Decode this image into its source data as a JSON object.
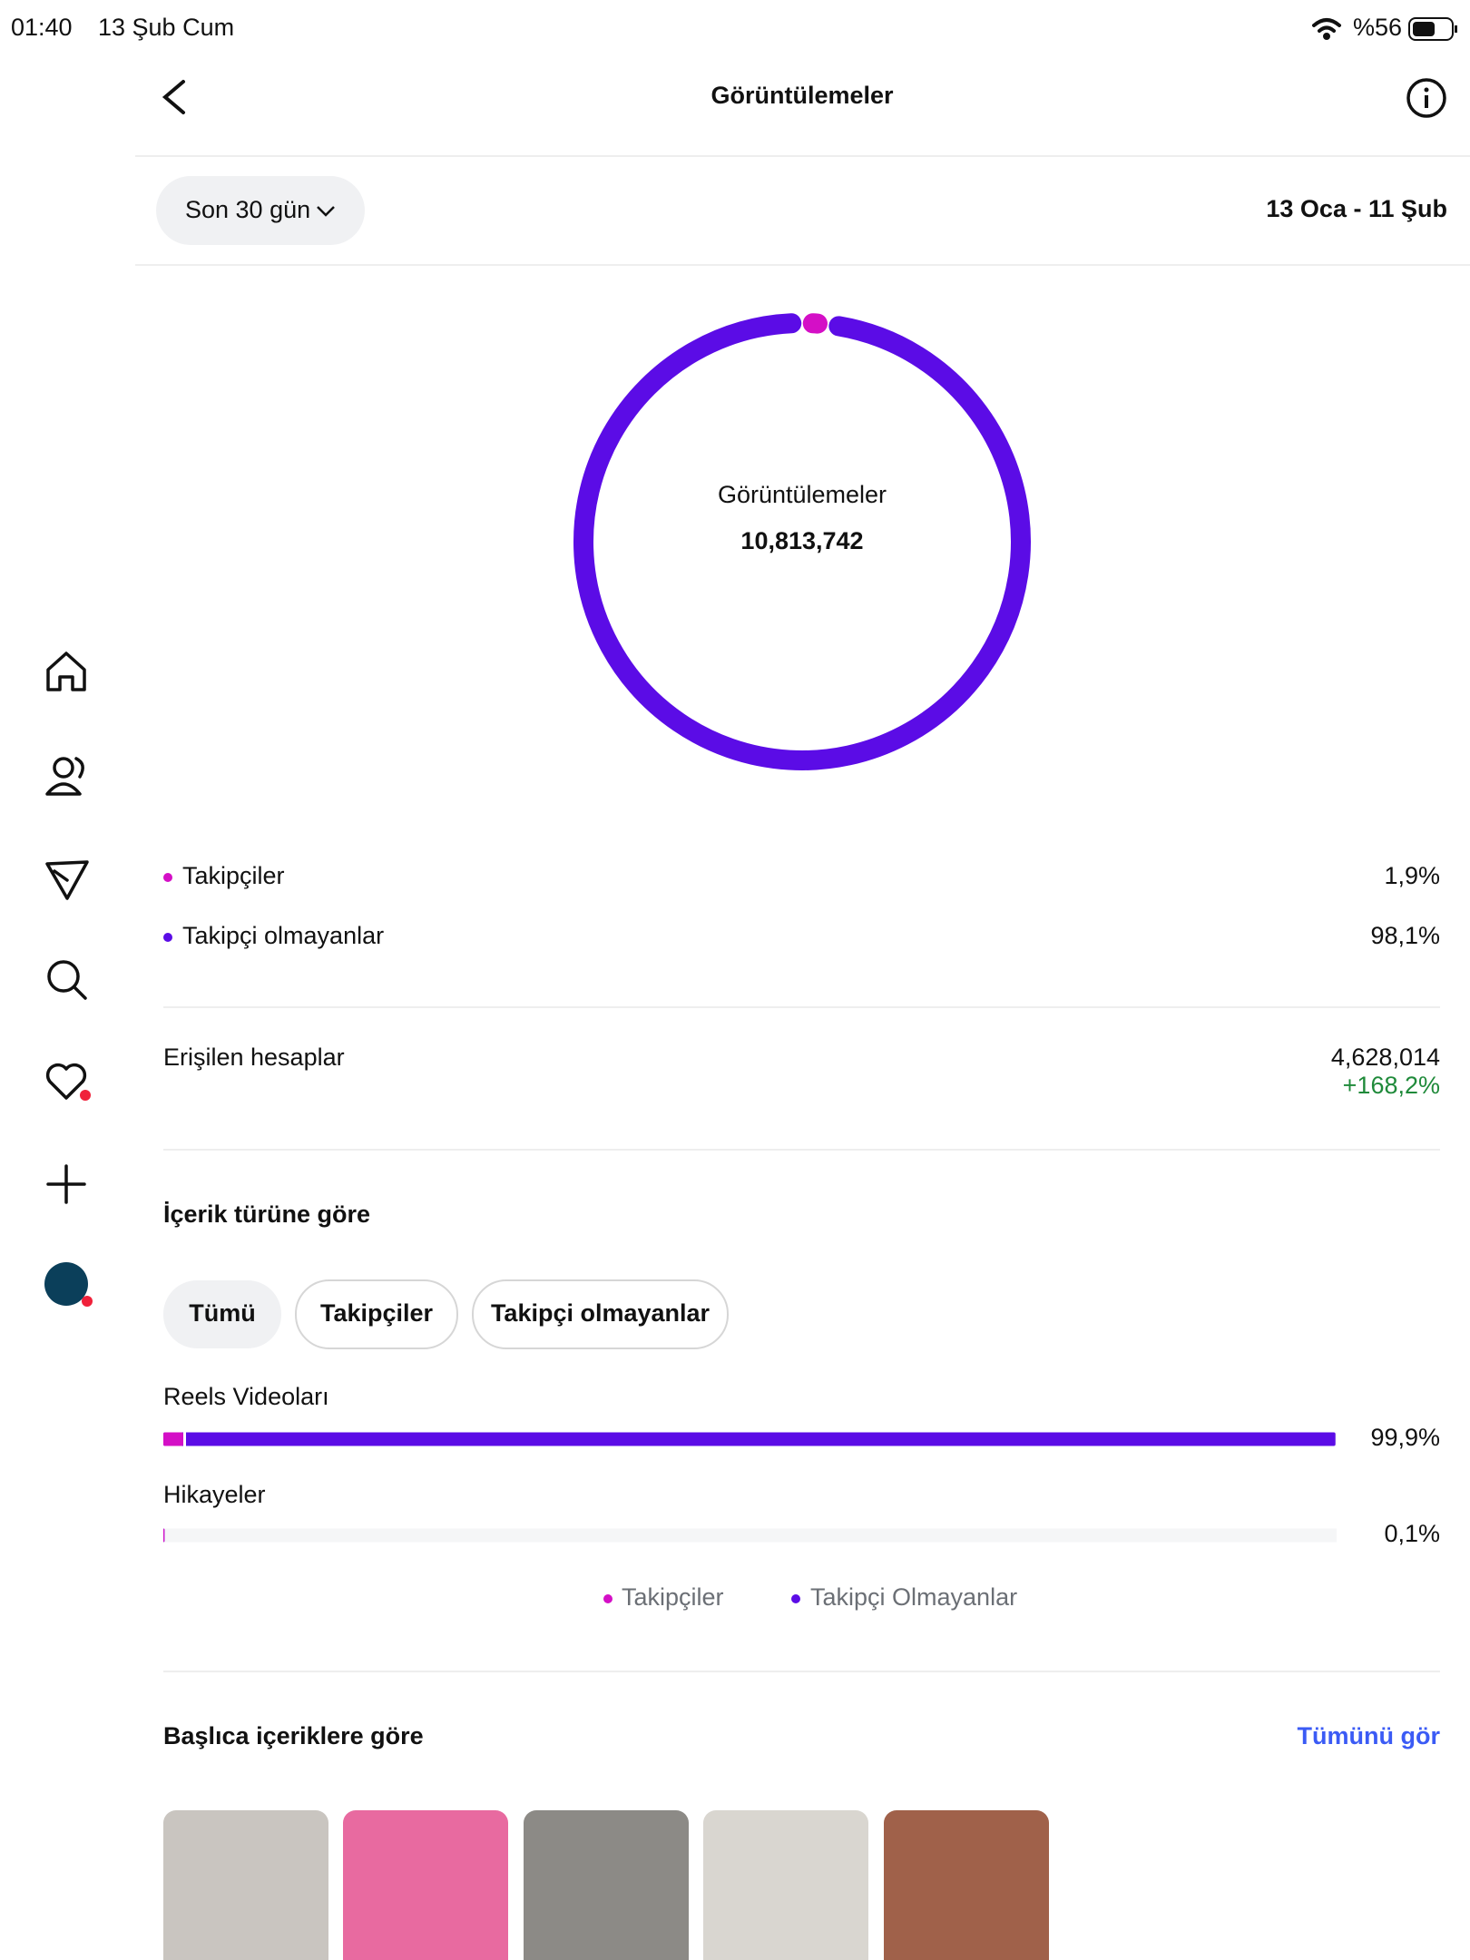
{
  "status_bar": {
    "time": "01:40",
    "date": "13 Şub Cum",
    "battery": "%56"
  },
  "header": {
    "title": "Görüntülemeler"
  },
  "filter": {
    "period": "Son 30 gün",
    "range": "13 Oca - 11 Şub"
  },
  "summary": {
    "label": "Görüntülemeler",
    "total": "10,813,742"
  },
  "audience": [
    {
      "name": "Takipçiler",
      "value": 1.9,
      "value_label": "1,9%",
      "color": "#d40fc6"
    },
    {
      "name": "Takipçi olmayanlar",
      "value": 98.1,
      "value_label": "98,1%",
      "color": "#5b0ce6"
    }
  ],
  "reach": {
    "label": "Erişilen hesaplar",
    "value": "4,628,014",
    "change": "+168,2%"
  },
  "content_type": {
    "title": "İçerik türüne göre",
    "tabs": [
      "Tümü",
      "Takipçiler",
      "Takipçi olmayanlar"
    ],
    "xlim": [
      0,
      100
    ],
    "items": [
      {
        "name": "Reels Videoları",
        "value": 99.9,
        "value_label": "99,9%"
      },
      {
        "name": "Hikayeler",
        "value": 0.1,
        "value_label": "0,1%"
      }
    ],
    "legend": [
      "Takipçiler",
      "Takipçi Olmayanlar"
    ]
  },
  "top_content": {
    "title": "Başlıca içeriklere göre",
    "link": "Tümünü gör"
  }
}
